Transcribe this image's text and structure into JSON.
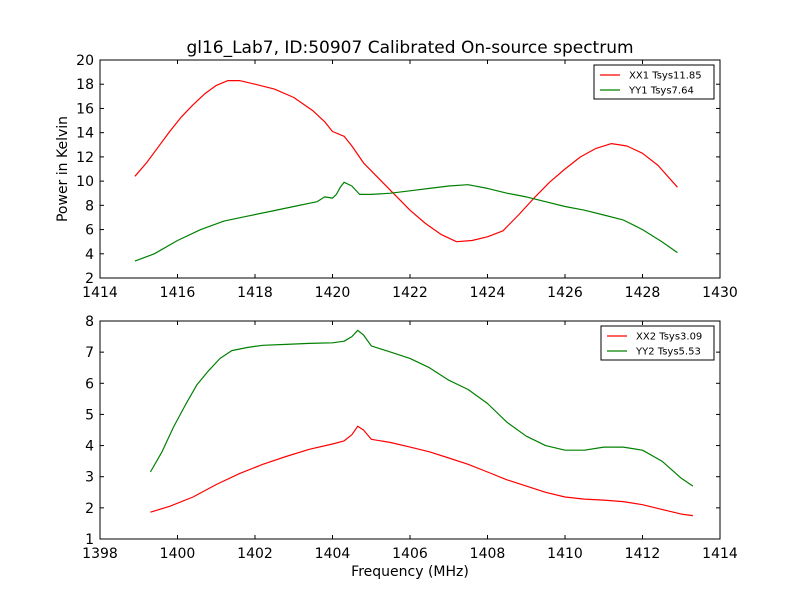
{
  "chart_data": [
    {
      "type": "line",
      "title": "gl16_Lab7, ID:50907 Calibrated On-source spectrum",
      "xlabel": "",
      "ylabel": "Power in Kelvin",
      "xlim": [
        1414,
        1430
      ],
      "ylim": [
        2,
        20
      ],
      "xticks": [
        1414,
        1416,
        1418,
        1420,
        1422,
        1424,
        1426,
        1428,
        1430
      ],
      "yticks": [
        2,
        4,
        6,
        8,
        10,
        12,
        14,
        16,
        18,
        20
      ],
      "grid": false,
      "legend_position": "top-right",
      "series": [
        {
          "name": "XX1 Tsys11.85",
          "color": "#ff0000",
          "points": [
            [
              1414.9,
              10.4
            ],
            [
              1415.2,
              11.5
            ],
            [
              1415.5,
              12.8
            ],
            [
              1415.8,
              14.1
            ],
            [
              1416.1,
              15.3
            ],
            [
              1416.4,
              16.3
            ],
            [
              1416.7,
              17.2
            ],
            [
              1417.0,
              17.9
            ],
            [
              1417.3,
              18.3
            ],
            [
              1417.6,
              18.3
            ],
            [
              1418.0,
              18.0
            ],
            [
              1418.5,
              17.6
            ],
            [
              1419.0,
              16.9
            ],
            [
              1419.5,
              15.8
            ],
            [
              1419.8,
              14.9
            ],
            [
              1420.0,
              14.1
            ],
            [
              1420.3,
              13.7
            ],
            [
              1420.5,
              12.9
            ],
            [
              1420.8,
              11.5
            ],
            [
              1421.2,
              10.2
            ],
            [
              1421.6,
              8.9
            ],
            [
              1422.0,
              7.6
            ],
            [
              1422.4,
              6.5
            ],
            [
              1422.8,
              5.6
            ],
            [
              1423.2,
              5.0
            ],
            [
              1423.6,
              5.1
            ],
            [
              1424.0,
              5.4
            ],
            [
              1424.4,
              5.9
            ],
            [
              1424.8,
              7.2
            ],
            [
              1425.2,
              8.6
            ],
            [
              1425.6,
              9.9
            ],
            [
              1426.0,
              11.0
            ],
            [
              1426.4,
              12.0
            ],
            [
              1426.8,
              12.7
            ],
            [
              1427.2,
              13.1
            ],
            [
              1427.6,
              12.9
            ],
            [
              1428.0,
              12.3
            ],
            [
              1428.4,
              11.3
            ],
            [
              1428.9,
              9.5
            ]
          ]
        },
        {
          "name": "YY1 Tsys7.64",
          "color": "#008000",
          "points": [
            [
              1414.9,
              3.4
            ],
            [
              1415.4,
              4.0
            ],
            [
              1416.0,
              5.1
            ],
            [
              1416.6,
              6.0
            ],
            [
              1417.2,
              6.7
            ],
            [
              1417.8,
              7.1
            ],
            [
              1418.4,
              7.5
            ],
            [
              1419.0,
              7.9
            ],
            [
              1419.6,
              8.3
            ],
            [
              1419.8,
              8.7
            ],
            [
              1420.0,
              8.6
            ],
            [
              1420.1,
              8.9
            ],
            [
              1420.2,
              9.5
            ],
            [
              1420.3,
              9.9
            ],
            [
              1420.5,
              9.6
            ],
            [
              1420.7,
              8.9
            ],
            [
              1421.0,
              8.9
            ],
            [
              1421.5,
              9.0
            ],
            [
              1422.0,
              9.2
            ],
            [
              1422.5,
              9.4
            ],
            [
              1423.0,
              9.6
            ],
            [
              1423.5,
              9.7
            ],
            [
              1424.0,
              9.4
            ],
            [
              1424.5,
              9.0
            ],
            [
              1425.0,
              8.7
            ],
            [
              1425.5,
              8.3
            ],
            [
              1426.0,
              7.9
            ],
            [
              1426.5,
              7.6
            ],
            [
              1427.0,
              7.2
            ],
            [
              1427.5,
              6.8
            ],
            [
              1428.0,
              6.0
            ],
            [
              1428.5,
              5.0
            ],
            [
              1428.9,
              4.1
            ]
          ]
        }
      ]
    },
    {
      "type": "line",
      "title": "",
      "xlabel": "Frequency (MHz)",
      "ylabel": "",
      "xlim": [
        1398,
        1414
      ],
      "ylim": [
        1,
        8
      ],
      "xticks": [
        1398,
        1400,
        1402,
        1404,
        1406,
        1408,
        1410,
        1412,
        1414
      ],
      "yticks": [
        1,
        2,
        3,
        4,
        5,
        6,
        7,
        8
      ],
      "grid": false,
      "legend_position": "top-right",
      "series": [
        {
          "name": "XX2 Tsys3.09",
          "color": "#ff0000",
          "points": [
            [
              1399.3,
              1.86
            ],
            [
              1399.8,
              2.05
            ],
            [
              1400.4,
              2.35
            ],
            [
              1401.0,
              2.75
            ],
            [
              1401.6,
              3.1
            ],
            [
              1402.2,
              3.4
            ],
            [
              1402.8,
              3.65
            ],
            [
              1403.4,
              3.88
            ],
            [
              1404.0,
              4.05
            ],
            [
              1404.3,
              4.15
            ],
            [
              1404.5,
              4.35
            ],
            [
              1404.65,
              4.62
            ],
            [
              1404.8,
              4.5
            ],
            [
              1405.0,
              4.2
            ],
            [
              1405.5,
              4.1
            ],
            [
              1406.0,
              3.95
            ],
            [
              1406.5,
              3.8
            ],
            [
              1407.0,
              3.6
            ],
            [
              1407.5,
              3.4
            ],
            [
              1408.0,
              3.15
            ],
            [
              1408.5,
              2.9
            ],
            [
              1409.0,
              2.7
            ],
            [
              1409.5,
              2.5
            ],
            [
              1410.0,
              2.35
            ],
            [
              1410.5,
              2.28
            ],
            [
              1411.0,
              2.25
            ],
            [
              1411.5,
              2.2
            ],
            [
              1412.0,
              2.1
            ],
            [
              1412.5,
              1.95
            ],
            [
              1413.0,
              1.8
            ],
            [
              1413.3,
              1.75
            ]
          ]
        },
        {
          "name": "YY2 Tsys5.53",
          "color": "#008000",
          "points": [
            [
              1399.3,
              3.15
            ],
            [
              1399.6,
              3.8
            ],
            [
              1399.9,
              4.6
            ],
            [
              1400.2,
              5.3
            ],
            [
              1400.5,
              5.95
            ],
            [
              1400.8,
              6.4
            ],
            [
              1401.1,
              6.8
            ],
            [
              1401.4,
              7.05
            ],
            [
              1401.8,
              7.15
            ],
            [
              1402.2,
              7.22
            ],
            [
              1402.8,
              7.25
            ],
            [
              1403.4,
              7.28
            ],
            [
              1404.0,
              7.3
            ],
            [
              1404.3,
              7.35
            ],
            [
              1404.5,
              7.5
            ],
            [
              1404.65,
              7.7
            ],
            [
              1404.8,
              7.55
            ],
            [
              1405.0,
              7.2
            ],
            [
              1405.5,
              7.0
            ],
            [
              1406.0,
              6.8
            ],
            [
              1406.5,
              6.5
            ],
            [
              1407.0,
              6.1
            ],
            [
              1407.5,
              5.8
            ],
            [
              1408.0,
              5.35
            ],
            [
              1408.5,
              4.75
            ],
            [
              1409.0,
              4.3
            ],
            [
              1409.5,
              4.0
            ],
            [
              1410.0,
              3.85
            ],
            [
              1410.5,
              3.85
            ],
            [
              1411.0,
              3.95
            ],
            [
              1411.5,
              3.95
            ],
            [
              1412.0,
              3.85
            ],
            [
              1412.5,
              3.5
            ],
            [
              1413.0,
              2.95
            ],
            [
              1413.3,
              2.7
            ]
          ]
        }
      ]
    }
  ]
}
